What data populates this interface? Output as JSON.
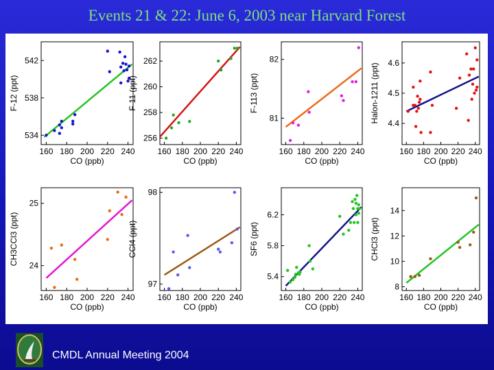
{
  "slide": {
    "title": "Events 21 & 22: June 6, 2003 near Harvard Forest",
    "footer": "CMDL Annual Meeting 2004"
  },
  "chart_data": [
    {
      "type": "scatter",
      "ylabel": "F-12 (ppt)",
      "xlabel": "CO (ppb)",
      "xlim": [
        155,
        245
      ],
      "ylim": [
        533,
        544
      ],
      "xticks": [
        160,
        180,
        200,
        220,
        240
      ],
      "yticks": [
        534,
        538,
        542
      ],
      "point_color": "#1414d0",
      "line_color": "#22c422",
      "fit": [
        [
          158,
          533.8
        ],
        [
          244,
          541.6
        ]
      ],
      "points": [
        [
          160,
          534.0
        ],
        [
          168,
          534.5
        ],
        [
          173,
          535.1
        ],
        [
          173,
          534.2
        ],
        [
          175,
          534.8
        ],
        [
          175,
          535.5
        ],
        [
          186,
          535.5
        ],
        [
          186,
          535.2
        ],
        [
          188,
          536.2
        ],
        [
          220,
          543.0
        ],
        [
          222,
          540.8
        ],
        [
          232,
          542.9
        ],
        [
          233,
          541.3
        ],
        [
          233,
          539.6
        ],
        [
          235,
          541.7
        ],
        [
          236,
          540.9
        ],
        [
          237,
          542.4
        ],
        [
          238,
          541.6
        ],
        [
          239,
          541.0
        ],
        [
          240,
          539.8
        ],
        [
          241,
          540.1
        ],
        [
          241,
          541.4
        ]
      ]
    },
    {
      "type": "scatter",
      "ylabel": "F-11 (ppt)",
      "xlabel": "CO (ppb)",
      "xlim": [
        155,
        245
      ],
      "ylim": [
        255.5,
        263.5
      ],
      "xticks": [
        160,
        180,
        200,
        220,
        240
      ],
      "yticks": [
        256,
        258,
        260,
        262
      ],
      "point_color": "#22aa22",
      "line_color": "#d41414",
      "fit": [
        [
          155,
          256.1
        ],
        [
          244,
          263.1
        ]
      ],
      "points": [
        [
          162,
          256.0
        ],
        [
          168,
          256.8
        ],
        [
          170,
          257.8
        ],
        [
          176,
          257.2
        ],
        [
          188,
          257.3
        ],
        [
          220,
          262.0
        ],
        [
          223,
          261.3
        ],
        [
          234,
          262.2
        ],
        [
          238,
          263.0
        ],
        [
          241,
          263.0
        ]
      ]
    },
    {
      "type": "scatter",
      "ylabel": "F-113 (ppt)",
      "xlabel": "CO (ppb)",
      "xlim": [
        155,
        245
      ],
      "ylim": [
        80.55,
        82.3
      ],
      "xticks": [
        160,
        180,
        200,
        220,
        240
      ],
      "yticks": [
        81,
        82
      ],
      "point_color": "#e020e0",
      "line_color": "#ee6a14",
      "fit": [
        [
          160,
          80.85
        ],
        [
          244,
          81.85
        ]
      ],
      "points": [
        [
          165,
          80.62
        ],
        [
          168,
          80.92
        ],
        [
          174,
          80.88
        ],
        [
          185,
          81.45
        ],
        [
          186,
          81.1
        ],
        [
          222,
          81.38
        ],
        [
          224,
          81.3
        ],
        [
          234,
          81.62
        ],
        [
          238,
          81.62
        ],
        [
          241,
          82.2
        ]
      ]
    },
    {
      "type": "scatter",
      "ylabel": "Halon-1211 (ppt)",
      "xlabel": "CO (ppb)",
      "xlim": [
        155,
        245
      ],
      "ylim": [
        4.33,
        4.67
      ],
      "xticks": [
        160,
        180,
        200,
        220,
        240
      ],
      "yticks": [
        4.4,
        4.5,
        4.6
      ],
      "point_color": "#e01414",
      "line_color": "#12128c",
      "fit": [
        [
          160,
          4.44
        ],
        [
          244,
          4.555
        ]
      ],
      "points": [
        [
          162,
          4.44
        ],
        [
          168,
          4.46
        ],
        [
          168,
          4.52
        ],
        [
          170,
          4.46
        ],
        [
          171,
          4.39
        ],
        [
          172,
          4.44
        ],
        [
          173,
          4.49
        ],
        [
          174,
          4.45
        ],
        [
          175,
          4.47
        ],
        [
          176,
          4.54
        ],
        [
          176,
          4.48
        ],
        [
          177,
          4.37
        ],
        [
          188,
          4.57
        ],
        [
          188,
          4.37
        ],
        [
          190,
          4.46
        ],
        [
          218,
          4.45
        ],
        [
          222,
          4.55
        ],
        [
          230,
          4.63
        ],
        [
          232,
          4.41
        ],
        [
          233,
          4.56
        ],
        [
          235,
          4.58
        ],
        [
          236,
          4.48
        ],
        [
          237,
          4.53
        ],
        [
          238,
          4.58
        ],
        [
          239,
          4.5
        ],
        [
          240,
          4.65
        ],
        [
          241,
          4.51
        ],
        [
          242,
          4.61
        ],
        [
          242,
          4.52
        ]
      ]
    },
    {
      "type": "scatter",
      "ylabel": "CH3CCl3 (ppt)",
      "xlabel": "CO (ppb)",
      "xlim": [
        155,
        245
      ],
      "ylim": [
        23.6,
        25.25
      ],
      "xticks": [
        160,
        180,
        200,
        220,
        240
      ],
      "yticks": [
        24,
        25
      ],
      "point_color": "#ee6a14",
      "line_color": "#e414d4",
      "fit": [
        [
          160,
          23.8
        ],
        [
          244,
          25.05
        ]
      ],
      "points": [
        [
          165,
          24.28
        ],
        [
          168,
          23.65
        ],
        [
          175,
          24.33
        ],
        [
          188,
          24.1
        ],
        [
          190,
          23.78
        ],
        [
          220,
          24.42
        ],
        [
          222,
          24.88
        ],
        [
          230,
          25.18
        ],
        [
          234,
          24.82
        ],
        [
          238,
          25.1
        ]
      ]
    },
    {
      "type": "scatter",
      "ylabel": "CCl4 (ppt)",
      "xlabel": "CO (ppb)",
      "xlim": [
        155,
        245
      ],
      "ylim": [
        96.93,
        98.05
      ],
      "xticks": [
        160,
        180,
        200,
        220,
        240
      ],
      "yticks": [
        97,
        98
      ],
      "point_color": "#5a5aee",
      "line_color": "#9c5a14",
      "fit": [
        [
          160,
          97.1
        ],
        [
          244,
          97.62
        ]
      ],
      "points": [
        [
          165,
          96.95
        ],
        [
          170,
          97.35
        ],
        [
          175,
          97.1
        ],
        [
          186,
          97.53
        ],
        [
          188,
          97.18
        ],
        [
          220,
          97.38
        ],
        [
          222,
          97.35
        ],
        [
          235,
          97.45
        ],
        [
          238,
          98.0
        ],
        [
          241,
          97.6
        ]
      ]
    },
    {
      "type": "scatter",
      "ylabel": "SF6 (ppt)",
      "xlabel": "CO (ppb)",
      "xlim": [
        155,
        245
      ],
      "ylim": [
        5.22,
        6.55
      ],
      "xticks": [
        160,
        180,
        200,
        220,
        240
      ],
      "yticks": [
        5.4,
        5.8,
        6.2
      ],
      "point_color": "#22c422",
      "line_color": "#12128c",
      "fit": [
        [
          160,
          5.28
        ],
        [
          244,
          6.3
        ]
      ],
      "points": [
        [
          162,
          5.48
        ],
        [
          165,
          5.33
        ],
        [
          168,
          5.36
        ],
        [
          170,
          5.39
        ],
        [
          171,
          5.43
        ],
        [
          172,
          5.52
        ],
        [
          174,
          5.45
        ],
        [
          175,
          5.43
        ],
        [
          176,
          5.46
        ],
        [
          186,
          5.8
        ],
        [
          187,
          5.6
        ],
        [
          190,
          5.5
        ],
        [
          220,
          6.18
        ],
        [
          224,
          5.95
        ],
        [
          230,
          6.0
        ],
        [
          232,
          6.1
        ],
        [
          234,
          6.37
        ],
        [
          235,
          6.28
        ],
        [
          236,
          6.1
        ],
        [
          237,
          6.4
        ],
        [
          238,
          6.2
        ],
        [
          238,
          6.35
        ],
        [
          239,
          6.45
        ],
        [
          240,
          6.28
        ],
        [
          240,
          6.1
        ],
        [
          241,
          6.33
        ],
        [
          241,
          6.22
        ],
        [
          242,
          6.28
        ]
      ]
    },
    {
      "type": "scatter",
      "ylabel": "CHCl3 (ppt)",
      "xlabel": "CO (ppb)",
      "xlim": [
        155,
        245
      ],
      "ylim": [
        7.7,
        15.8
      ],
      "xticks": [
        160,
        180,
        200,
        220,
        240
      ],
      "yticks": [
        8,
        10,
        12,
        14
      ],
      "point_color": "#9c5a14",
      "line_color": "#22c422",
      "fit": [
        [
          160,
          8.3
        ],
        [
          244,
          12.9
        ]
      ],
      "points": [
        [
          165,
          8.8
        ],
        [
          170,
          8.8
        ],
        [
          175,
          8.9
        ],
        [
          188,
          10.2
        ],
        [
          220,
          11.5
        ],
        [
          222,
          11.1
        ],
        [
          234,
          11.3
        ],
        [
          238,
          12.3
        ],
        [
          241,
          15.0
        ]
      ]
    }
  ]
}
